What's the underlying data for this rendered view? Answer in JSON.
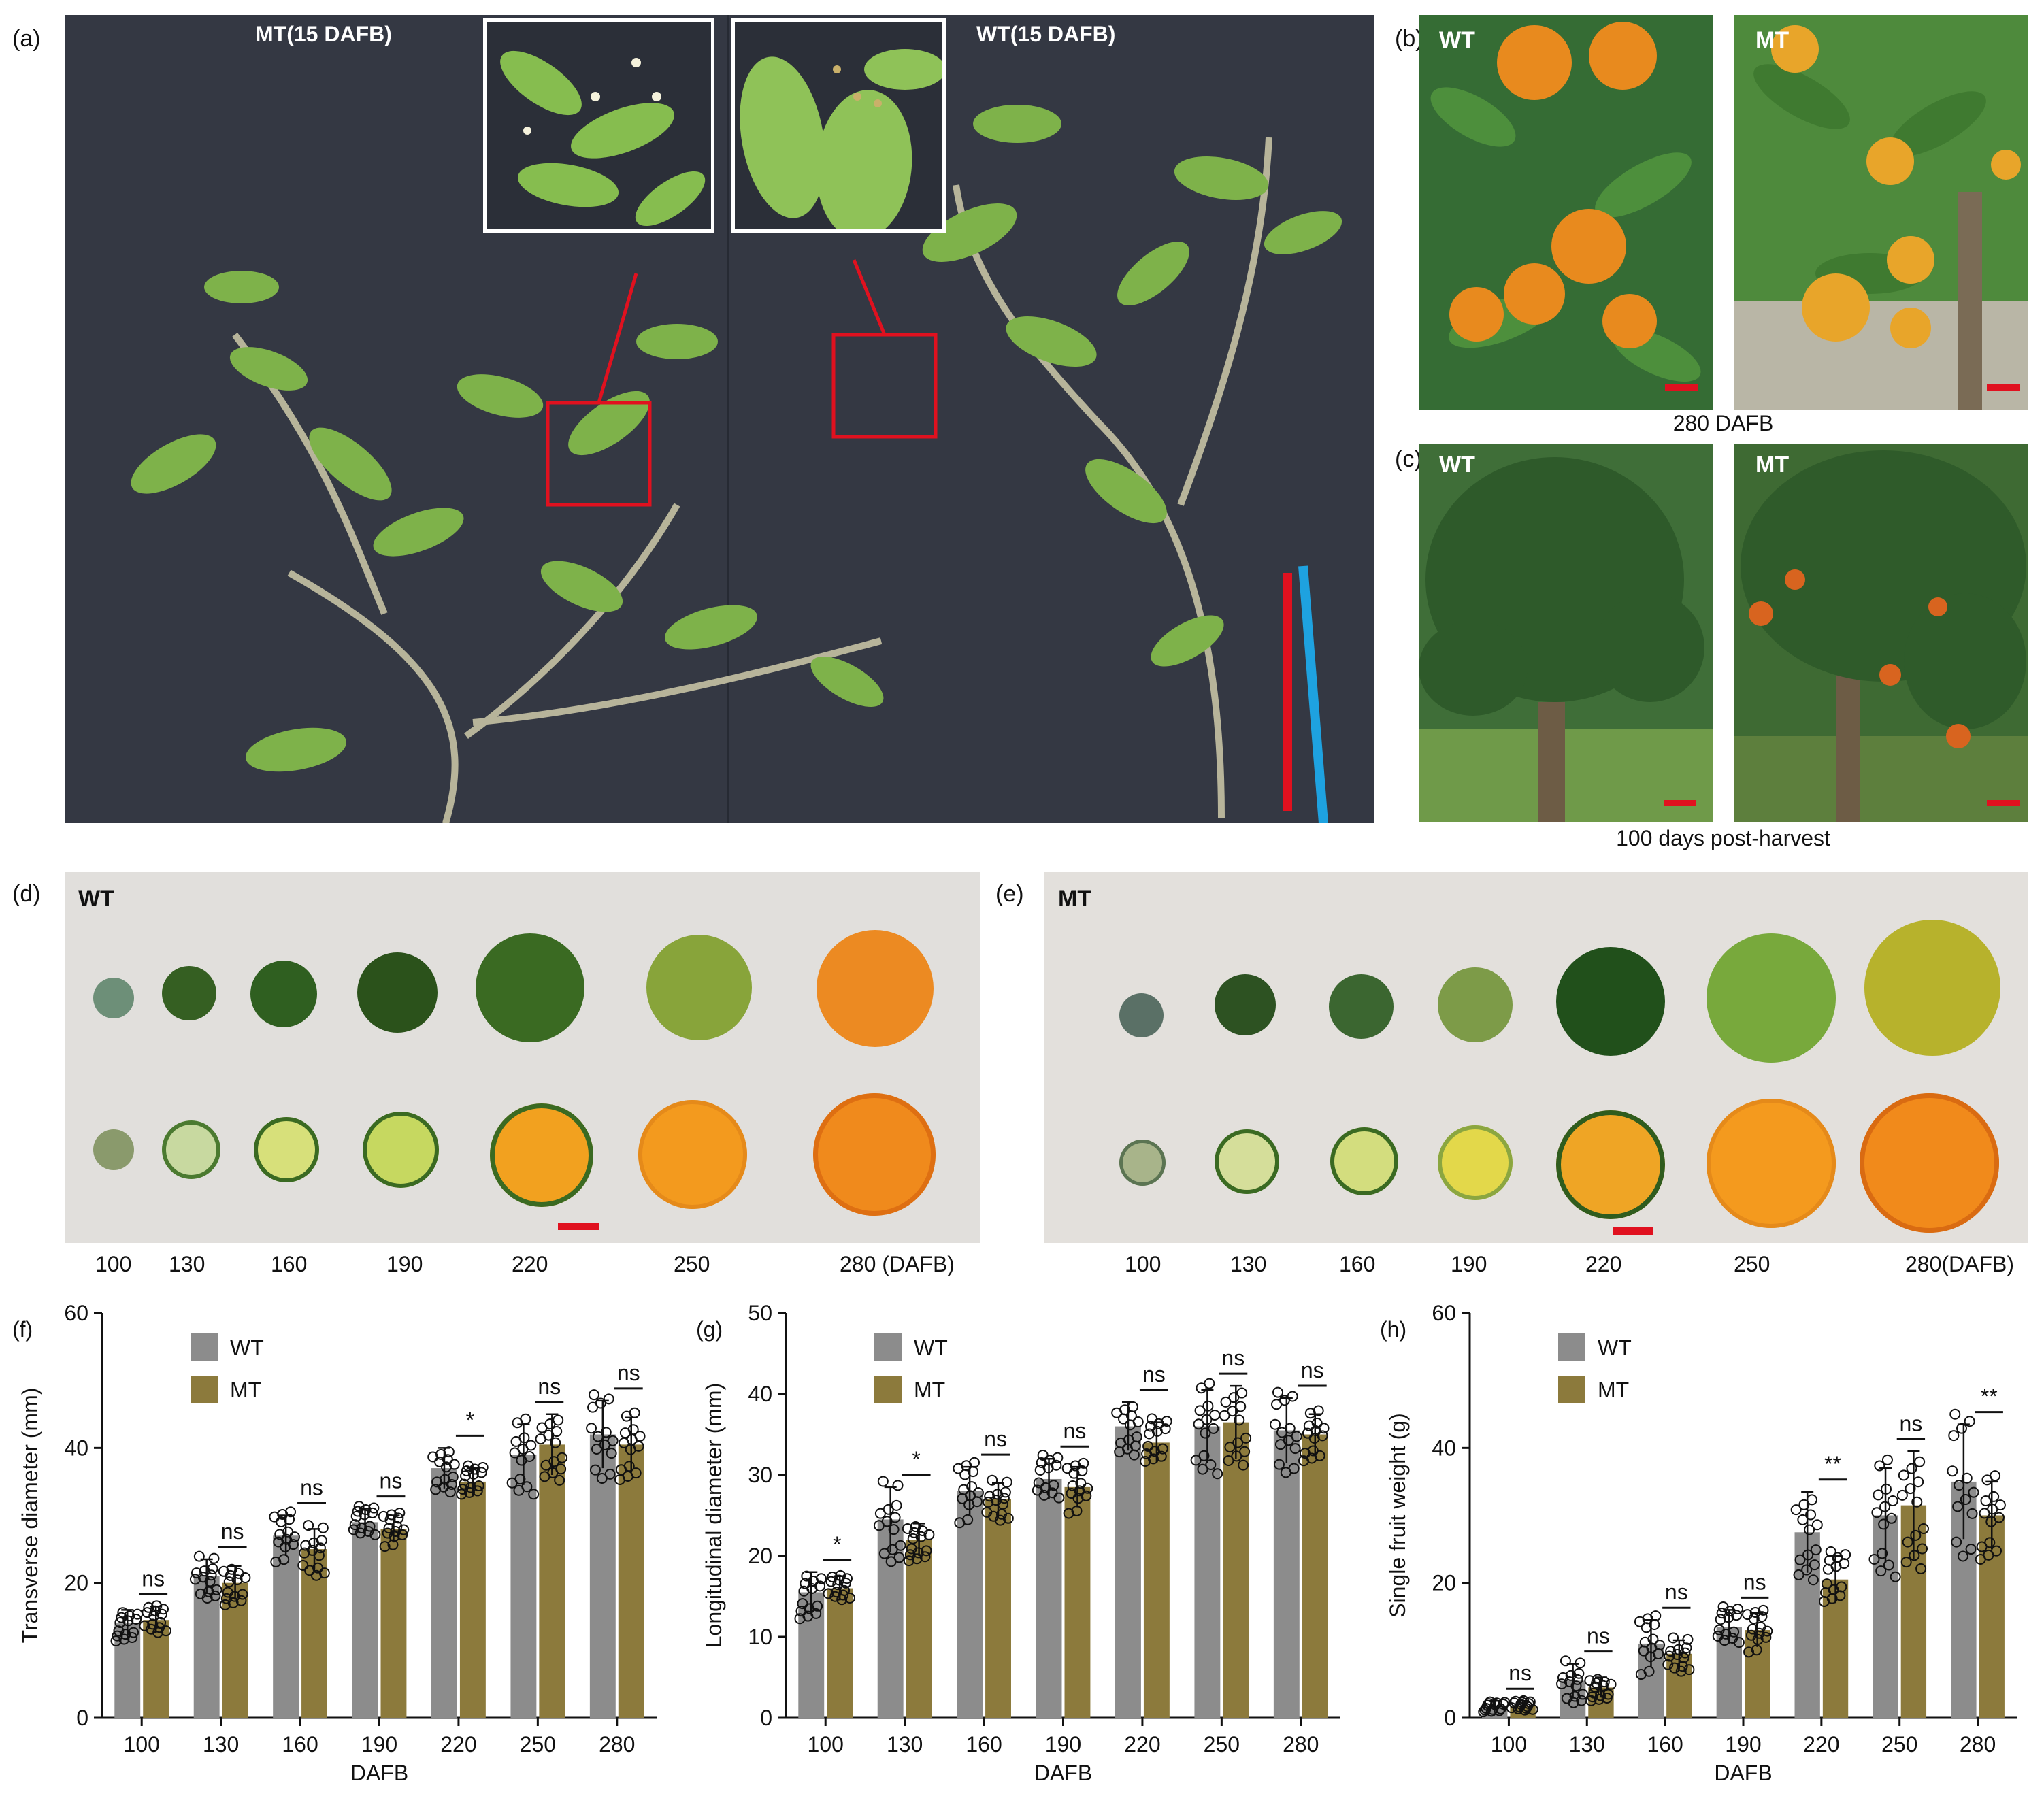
{
  "panels": {
    "a": {
      "label": "(a)",
      "left_title": "MT(15 DAFB)",
      "right_title": "WT(15 DAFB)"
    },
    "b": {
      "label": "(b)",
      "left_tag": "WT",
      "right_tag": "MT",
      "caption": "280 DAFB"
    },
    "c": {
      "label": "(c)",
      "left_tag": "WT",
      "right_tag": "MT",
      "caption": "100 days post-harvest"
    },
    "d": {
      "label": "(d)",
      "tag": "WT",
      "ticks": [
        "100",
        "130",
        "160",
        "190",
        "220",
        "250",
        "280 (DAFB)"
      ]
    },
    "e": {
      "label": "(e)",
      "tag": "MT",
      "ticks": [
        "100",
        "130",
        "160",
        "190",
        "220",
        "250",
        "280(DAFB)"
      ]
    }
  },
  "colors": {
    "wt": "#8c8c8c",
    "mt": "#8c7a3c",
    "scale_bar": "#e0111f",
    "bg_photo": "#343843"
  },
  "chart_data": [
    {
      "panel": "(f)",
      "type": "bar",
      "categories": [
        "100",
        "130",
        "160",
        "190",
        "220",
        "250",
        "280"
      ],
      "xlabel": "DAFB",
      "ylabel": "Transverse diameter (mm)",
      "ylim": [
        0,
        60
      ],
      "yticks": [
        "0",
        "20",
        "40",
        "60"
      ],
      "legend": [
        "WT",
        "MT"
      ],
      "legend_position": "top-left",
      "series": [
        {
          "name": "WT",
          "values": [
            14,
            21,
            27,
            29,
            37,
            39,
            42
          ],
          "err": [
            2,
            2.5,
            3,
            2,
            3,
            4.5,
            5
          ]
        },
        {
          "name": "MT",
          "values": [
            14.5,
            20,
            25,
            28,
            35,
            40.5,
            40.5
          ],
          "err": [
            2,
            2.5,
            3,
            2,
            2,
            4.5,
            4
          ]
        }
      ],
      "significance": [
        "ns",
        "ns",
        "ns",
        "ns",
        "*",
        "ns",
        "ns"
      ]
    },
    {
      "panel": "(g)",
      "type": "bar",
      "categories": [
        "100",
        "130",
        "160",
        "190",
        "220",
        "250",
        "280"
      ],
      "xlabel": "DAFB",
      "ylabel": "Longitudinal diameter (mm)",
      "ylim": [
        0,
        50
      ],
      "yticks": [
        "0",
        "10",
        "20",
        "30",
        "40",
        "50"
      ],
      "legend": [
        "WT",
        "MT"
      ],
      "legend_position": "top-left",
      "series": [
        {
          "name": "WT",
          "values": [
            15.5,
            24.5,
            28,
            29.5,
            36,
            36,
            35.5
          ],
          "err": [
            2.5,
            4,
            3,
            2.5,
            3,
            4.5,
            4
          ]
        },
        {
          "name": "MT",
          "values": [
            16,
            22,
            27,
            28.5,
            34,
            36.5,
            35
          ],
          "err": [
            1.5,
            2,
            2,
            2.5,
            2.5,
            4.5,
            2.5
          ]
        }
      ],
      "significance": [
        "*",
        "*",
        "ns",
        "ns",
        "ns",
        "ns",
        "ns"
      ]
    },
    {
      "panel": "(h)",
      "type": "bar",
      "categories": [
        "100",
        "130",
        "160",
        "190",
        "220",
        "250",
        "280"
      ],
      "xlabel": "DAFB",
      "ylabel": "Single fruit weight (g)",
      "ylim": [
        0,
        60
      ],
      "yticks": [
        "0",
        "20",
        "40",
        "60"
      ],
      "legend": [
        "WT",
        "MT"
      ],
      "legend_position": "top-left",
      "series": [
        {
          "name": "WT",
          "values": [
            1.8,
            5.5,
            11,
            13.5,
            27.5,
            30,
            35
          ],
          "err": [
            0.7,
            2.5,
            3.5,
            2.5,
            6,
            7,
            8.5
          ]
        },
        {
          "name": "MT",
          "values": [
            1.8,
            4.5,
            9.5,
            13,
            20.5,
            31.5,
            30
          ],
          "err": [
            0.7,
            1.5,
            2,
            2.5,
            3.5,
            8,
            5
          ]
        }
      ],
      "significance": [
        "ns",
        "ns",
        "ns",
        "ns",
        "**",
        "ns",
        "**"
      ]
    }
  ]
}
